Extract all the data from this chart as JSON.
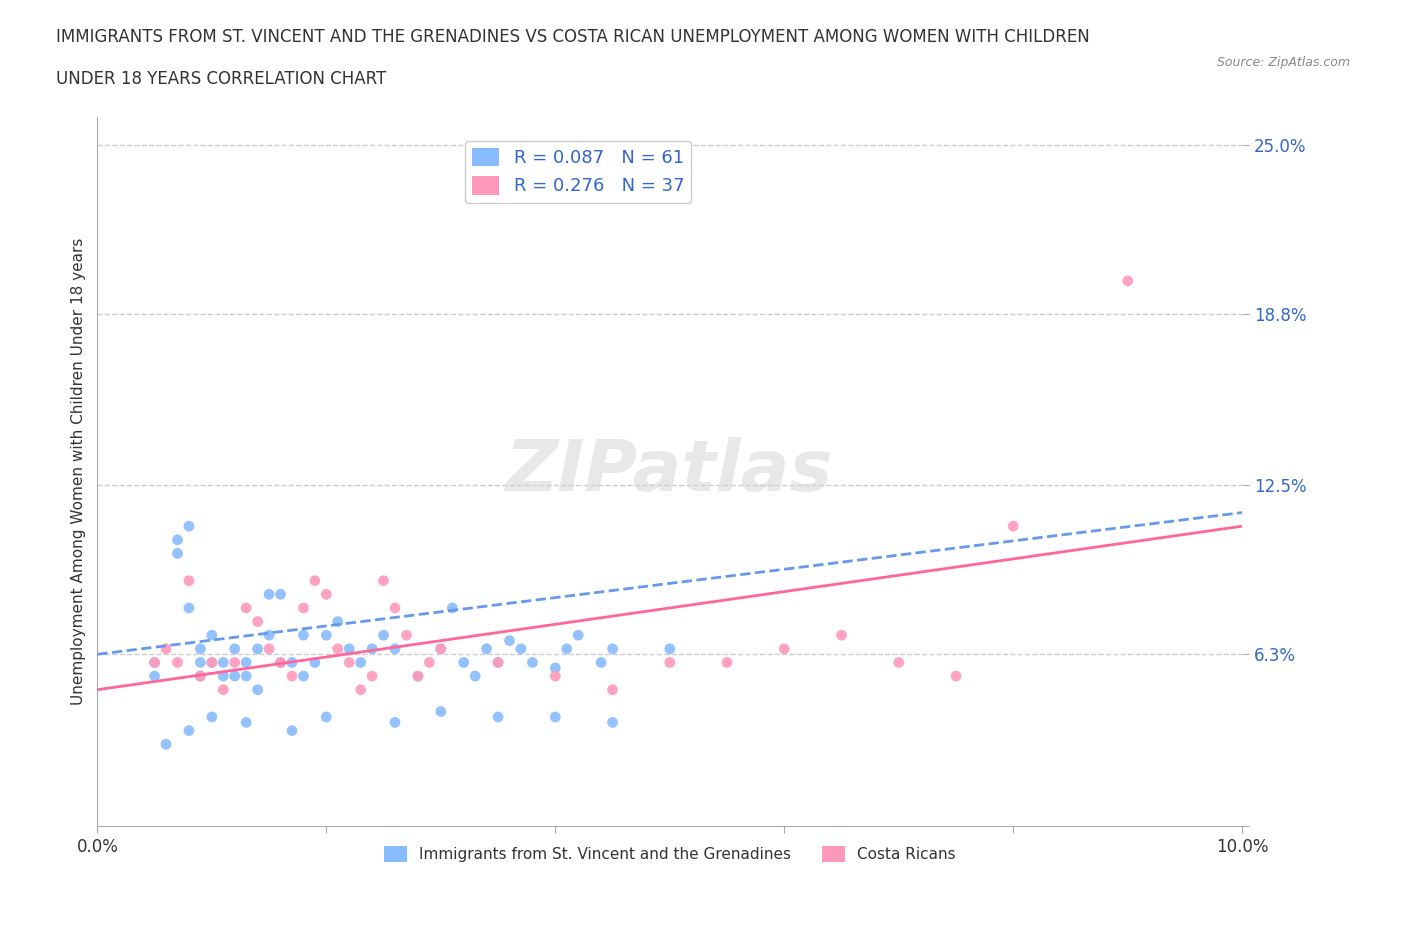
{
  "title_line1": "IMMIGRANTS FROM ST. VINCENT AND THE GRENADINES VS COSTA RICAN UNEMPLOYMENT AMONG WOMEN WITH CHILDREN",
  "title_line2": "UNDER 18 YEARS CORRELATION CHART",
  "source_text": "Source: ZipAtlas.com",
  "xlabel": "",
  "ylabel": "Unemployment Among Women with Children Under 18 years",
  "xlim": [
    0,
    0.1
  ],
  "ylim": [
    0,
    0.26
  ],
  "xtick_vals": [
    0.0,
    0.02,
    0.04,
    0.06,
    0.08,
    0.1
  ],
  "xtick_labels": [
    "0.0%",
    "",
    "",
    "",
    "",
    "10.0%"
  ],
  "ytick_vals": [
    0.0,
    0.063,
    0.125,
    0.188,
    0.25
  ],
  "ytick_labels": [
    "",
    "6.3%",
    "12.5%",
    "18.8%",
    "25.0%"
  ],
  "gridline_color": "#cccccc",
  "background_color": "#ffffff",
  "watermark_text": "ZIPatlas",
  "legend_R1": "0.087",
  "legend_N1": "61",
  "legend_R2": "0.276",
  "legend_N2": "37",
  "legend_color": "#3366cc",
  "series1_color": "#88bbff",
  "series2_color": "#ff99bb",
  "series1_line_color": "#6699ee",
  "series2_line_color": "#ff6699",
  "blue_scatter_x": [
    0.005,
    0.005,
    0.007,
    0.007,
    0.008,
    0.008,
    0.009,
    0.009,
    0.009,
    0.01,
    0.01,
    0.011,
    0.011,
    0.012,
    0.012,
    0.013,
    0.013,
    0.014,
    0.014,
    0.015,
    0.015,
    0.016,
    0.016,
    0.017,
    0.018,
    0.018,
    0.019,
    0.02,
    0.021,
    0.022,
    0.023,
    0.024,
    0.025,
    0.026,
    0.028,
    0.03,
    0.031,
    0.032,
    0.033,
    0.034,
    0.035,
    0.036,
    0.037,
    0.038,
    0.04,
    0.041,
    0.042,
    0.044,
    0.045,
    0.05,
    0.006,
    0.008,
    0.01,
    0.013,
    0.017,
    0.02,
    0.026,
    0.03,
    0.035,
    0.04,
    0.045
  ],
  "blue_scatter_y": [
    0.055,
    0.06,
    0.105,
    0.1,
    0.11,
    0.08,
    0.055,
    0.06,
    0.065,
    0.07,
    0.06,
    0.055,
    0.06,
    0.065,
    0.055,
    0.06,
    0.055,
    0.065,
    0.05,
    0.085,
    0.07,
    0.085,
    0.06,
    0.06,
    0.07,
    0.055,
    0.06,
    0.07,
    0.075,
    0.065,
    0.06,
    0.065,
    0.07,
    0.065,
    0.055,
    0.065,
    0.08,
    0.06,
    0.055,
    0.065,
    0.06,
    0.068,
    0.065,
    0.06,
    0.058,
    0.065,
    0.07,
    0.06,
    0.065,
    0.065,
    0.03,
    0.035,
    0.04,
    0.038,
    0.035,
    0.04,
    0.038,
    0.042,
    0.04,
    0.04,
    0.038
  ],
  "pink_scatter_x": [
    0.005,
    0.006,
    0.007,
    0.008,
    0.009,
    0.01,
    0.011,
    0.012,
    0.013,
    0.014,
    0.015,
    0.016,
    0.017,
    0.018,
    0.019,
    0.02,
    0.021,
    0.022,
    0.023,
    0.024,
    0.025,
    0.026,
    0.027,
    0.028,
    0.029,
    0.03,
    0.035,
    0.04,
    0.045,
    0.05,
    0.055,
    0.06,
    0.065,
    0.07,
    0.075,
    0.08,
    0.09
  ],
  "pink_scatter_y": [
    0.06,
    0.065,
    0.06,
    0.09,
    0.055,
    0.06,
    0.05,
    0.06,
    0.08,
    0.075,
    0.065,
    0.06,
    0.055,
    0.08,
    0.09,
    0.085,
    0.065,
    0.06,
    0.05,
    0.055,
    0.09,
    0.08,
    0.07,
    0.055,
    0.06,
    0.065,
    0.06,
    0.055,
    0.05,
    0.06,
    0.06,
    0.065,
    0.07,
    0.06,
    0.055,
    0.11,
    0.2
  ],
  "trendline1_x": [
    0.0,
    0.1
  ],
  "trendline1_y": [
    0.063,
    0.115
  ],
  "trendline2_x": [
    0.0,
    0.1
  ],
  "trendline2_y": [
    0.05,
    0.11
  ]
}
